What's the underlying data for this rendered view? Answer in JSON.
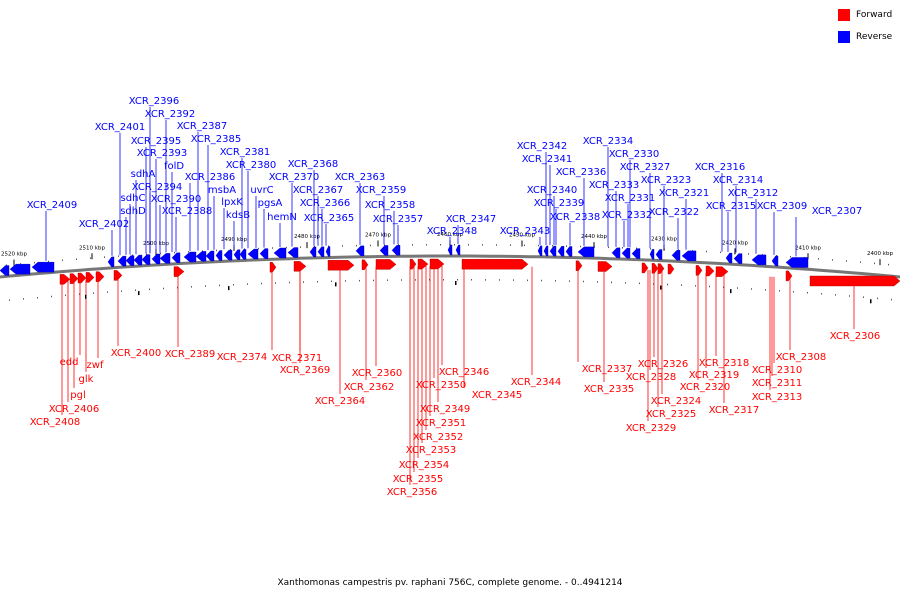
{
  "colors": {
    "forward": "#ff0000",
    "reverse": "#0000ff",
    "axis": "#777777",
    "tick": "#000000"
  },
  "legend": {
    "forward": "Forward",
    "reverse": "Reverse"
  },
  "caption": "Xanthomonas campestris pv. raphani 756C, complete genome. - 0..4941214",
  "scale": {
    "ticks": [
      "2520 kbp",
      "2510 kbp",
      "2500 kbp",
      "2490 kbp",
      "2480 kbp",
      "2470 kbp",
      "2460 kbp",
      "2450 kbp",
      "2440 kbp",
      "2430 kbp",
      "2420 kbp",
      "2410 kbp",
      "2400 kbp"
    ]
  },
  "reverse_genes": [
    "XCR_2409",
    "XCR_2402",
    "XCR_2401",
    "sdhD",
    "sdhC",
    "sdhA",
    "XCR_2396",
    "XCR_2395",
    "XCR_2394",
    "XCR_2393",
    "XCR_2392",
    "XCR_2390",
    "folD",
    "XCR_2388",
    "XCR_2387",
    "XCR_2386",
    "XCR_2385",
    "msbA",
    "lpxK",
    "kdsB",
    "XCR_2381",
    "XCR_2380",
    "uvrC",
    "pgsA",
    "hemN",
    "XCR_2370",
    "XCR_2368",
    "XCR_2367",
    "XCR_2366",
    "XCR_2365",
    "XCR_2363",
    "XCR_2359",
    "XCR_2358",
    "XCR_2357",
    "XCR_2348",
    "XCR_2347",
    "XCR_2343",
    "XCR_2342",
    "XCR_2341",
    "XCR_2340",
    "XCR_2339",
    "XCR_2338",
    "XCR_2336",
    "XCR_2334",
    "XCR_2333",
    "XCR_2332",
    "XCR_2331",
    "XCR_2330",
    "XCR_2327",
    "XCR_2323",
    "XCR_2322",
    "XCR_2321",
    "XCR_2316",
    "XCR_2315",
    "XCR_2314",
    "XCR_2312",
    "XCR_2309",
    "XCR_2307"
  ],
  "forward_genes": [
    "XCR_2408",
    "XCR_2406",
    "pgl",
    "edd",
    "glk",
    "zwf",
    "XCR_2400",
    "XCR_2389",
    "XCR_2374",
    "XCR_2371",
    "XCR_2369",
    "XCR_2364",
    "XCR_2362",
    "XCR_2360",
    "XCR_2356",
    "XCR_2355",
    "XCR_2354",
    "XCR_2353",
    "XCR_2352",
    "XCR_2351",
    "XCR_2350",
    "XCR_2349",
    "XCR_2346",
    "XCR_2345",
    "XCR_2344",
    "XCR_2337",
    "XCR_2335",
    "XCR_2329",
    "XCR_2328",
    "XCR_2326",
    "XCR_2325",
    "XCR_2324",
    "XCR_2320",
    "XCR_2319",
    "XCR_2318",
    "XCR_2317",
    "XCR_2313",
    "XCR_2311",
    "XCR_2310",
    "XCR_2308",
    "XCR_2306"
  ]
}
